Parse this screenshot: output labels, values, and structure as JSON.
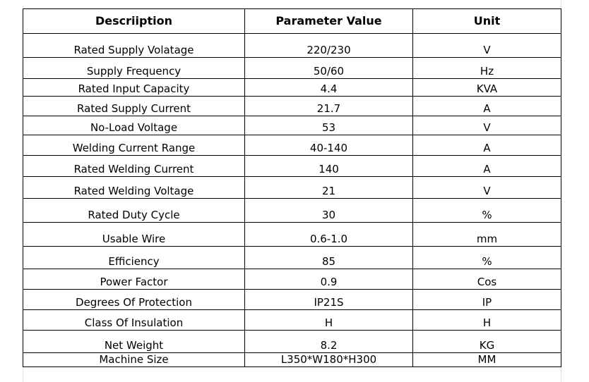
{
  "table": {
    "headers": [
      "Descriiption",
      "Parameter Value",
      "Unit"
    ],
    "rows": [
      {
        "description": "Rated Supply Volatage",
        "value": "220/230",
        "unit": "V"
      },
      {
        "description": "Supply Frequency",
        "value": "50/60",
        "unit": "Hz"
      },
      {
        "description": "Rated Input Capacity",
        "value": "4.4",
        "unit": "KVA"
      },
      {
        "description": "Rated Supply Current",
        "value": "21.7",
        "unit": "A"
      },
      {
        "description": "No-Load Voltage",
        "value": "53",
        "unit": "V"
      },
      {
        "description": "Welding Current Range",
        "value": "40-140",
        "unit": "A"
      },
      {
        "description": "Rated Welding Current",
        "value": "140",
        "unit": "A"
      },
      {
        "description": "Rated Welding Voltage",
        "value": "21",
        "unit": "V"
      },
      {
        "description": "Rated Duty Cycle",
        "value": "30",
        "unit": "%"
      },
      {
        "description": "Usable Wire",
        "value": "0.6-1.0",
        "unit": "mm"
      },
      {
        "description": "Efficiency",
        "value": "85",
        "unit": "%"
      },
      {
        "description": "Power Factor",
        "value": "0.9",
        "unit": "Cos"
      },
      {
        "description": "Degrees Of Protection",
        "value": "IP21S",
        "unit": "IP"
      },
      {
        "description": "Class Of Insulation",
        "value": "H",
        "unit": "H"
      },
      {
        "description": "Net Weight",
        "value": "8.2",
        "unit": "KG"
      },
      {
        "description": "Machine Size",
        "value": "L350*W180*H300",
        "unit": "MM"
      }
    ]
  }
}
